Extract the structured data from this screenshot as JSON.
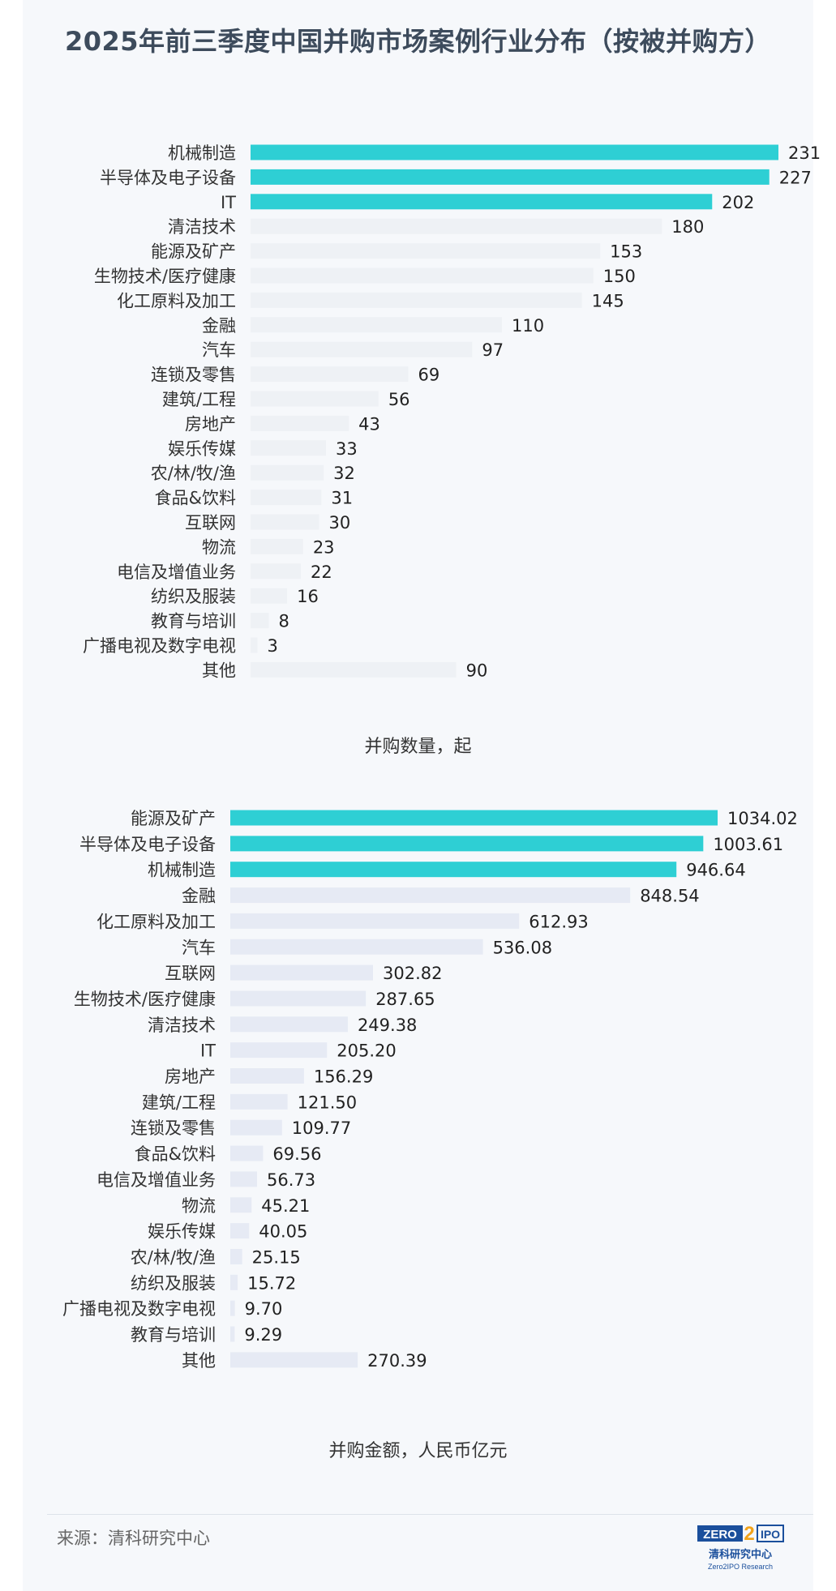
{
  "title": "2025年前三季度中国并购市场案例行业分布（按被并购方）",
  "source": "来源：清科研究中心",
  "logo": {
    "text_top": "ZERO2IPO",
    "text_cn": "清科研究中心",
    "text_en": "Zero2IPO Research"
  },
  "colors": {
    "highlight": "#2ecfd4",
    "normal_count": "#eef1f5",
    "normal_amount": "#e6eaf4"
  },
  "chart_data": [
    {
      "type": "bar",
      "orientation": "horizontal",
      "xlabel": "并购数量，起",
      "categories": [
        "机械制造",
        "半导体及电子设备",
        "IT",
        "清洁技术",
        "能源及矿产",
        "生物技术/医疗健康",
        "化工原料及加工",
        "金融",
        "汽车",
        "连锁及零售",
        "建筑/工程",
        "房地产",
        "娱乐传媒",
        "农/林/牧/渔",
        "食品&饮料",
        "互联网",
        "物流",
        "电信及增值业务",
        "纺织及服装",
        "教育与培训",
        "广播电视及数字电视",
        "其他"
      ],
      "values": [
        231,
        227,
        202,
        180,
        153,
        150,
        145,
        110,
        97,
        69,
        56,
        43,
        33,
        32,
        31,
        30,
        23,
        22,
        16,
        8,
        3,
        90
      ],
      "value_labels": [
        "231",
        "227",
        "202",
        "180",
        "153",
        "150",
        "145",
        "110",
        "97",
        "69",
        "56",
        "43",
        "33",
        "32",
        "31",
        "30",
        "23",
        "22",
        "16",
        "8",
        "3",
        "90"
      ],
      "highlight_top": 3,
      "xlim": [
        0,
        231
      ]
    },
    {
      "type": "bar",
      "orientation": "horizontal",
      "xlabel": "并购金额，人民币亿元",
      "categories": [
        "能源及矿产",
        "半导体及电子设备",
        "机械制造",
        "金融",
        "化工原料及加工",
        "汽车",
        "互联网",
        "生物技术/医疗健康",
        "清洁技术",
        "IT",
        "房地产",
        "建筑/工程",
        "连锁及零售",
        "食品&饮料",
        "电信及增值业务",
        "物流",
        "娱乐传媒",
        "农/林/牧/渔",
        "纺织及服装",
        "广播电视及数字电视",
        "教育与培训",
        "其他"
      ],
      "values": [
        1034.02,
        1003.61,
        946.64,
        848.54,
        612.93,
        536.08,
        302.82,
        287.65,
        249.38,
        205.2,
        156.29,
        121.5,
        109.77,
        69.56,
        56.73,
        45.21,
        40.05,
        25.15,
        15.72,
        9.7,
        9.29,
        270.39
      ],
      "value_labels": [
        "1034.02",
        "1003.61",
        "946.64",
        "848.54",
        "612.93",
        "536.08",
        "302.82",
        "287.65",
        "249.38",
        "205.20",
        "156.29",
        "121.50",
        "109.77",
        "69.56",
        "56.73",
        "45.21",
        "40.05",
        "25.15",
        "15.72",
        "9.70",
        "9.29",
        "270.39"
      ],
      "highlight_top": 3,
      "xlim": [
        0,
        1034.02
      ]
    }
  ]
}
